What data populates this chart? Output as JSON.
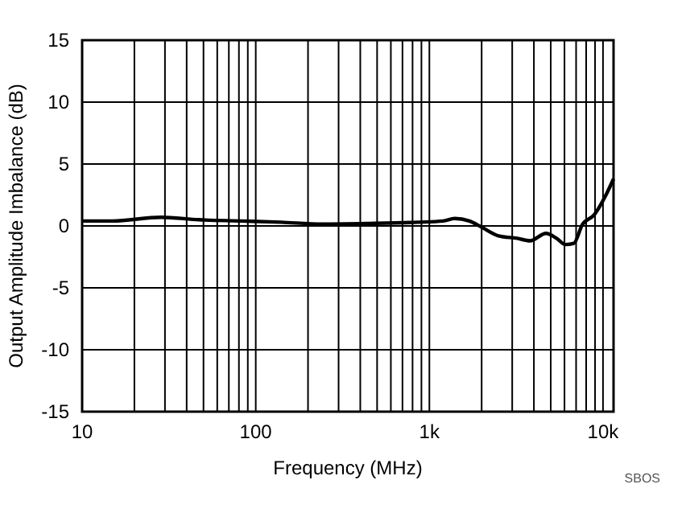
{
  "chart_data": {
    "type": "line",
    "xlabel": "Frequency (MHz)",
    "ylabel": "Output Amplitude Imbalance (dB)",
    "log": "x",
    "grid": true,
    "xlim": [
      10,
      11500
    ],
    "ylim": [
      -15,
      15
    ],
    "xticks": [
      10,
      100,
      {
        "value": 1000,
        "label": "1k"
      },
      {
        "value": 10000,
        "label": "10k"
      }
    ],
    "yticks": [
      -15,
      -10,
      -5,
      0,
      5,
      10,
      15
    ],
    "annotations": [
      "SBOS"
    ],
    "series": [
      {
        "color": "#000000",
        "x": [
          10,
          15,
          28.5,
          47,
          83,
          140,
          240,
          450,
          860,
          1200,
          1400,
          1700,
          2000,
          2500,
          3200,
          3800,
          4700,
          5400,
          6100,
          6800,
          7600,
          8900,
          10400,
          11500
        ],
        "values": [
          0.4,
          0.4,
          0.7,
          0.5,
          0.4,
          0.3,
          0.15,
          0.2,
          0.3,
          0.4,
          0.6,
          0.4,
          -0.1,
          -0.8,
          -1.0,
          -1.2,
          -0.6,
          -1.0,
          -1.5,
          -1.4,
          0.1,
          0.9,
          2.5,
          3.8
        ]
      }
    ]
  }
}
